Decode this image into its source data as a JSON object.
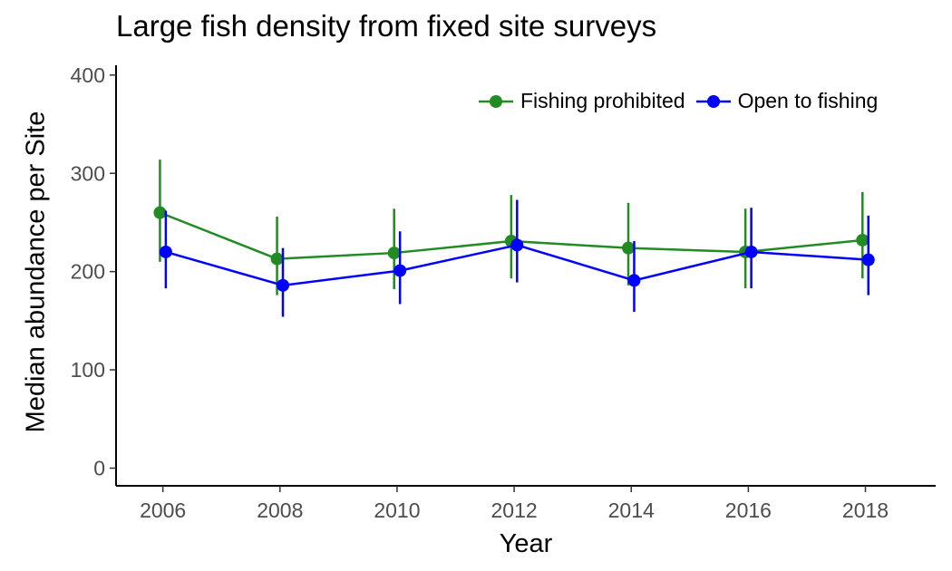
{
  "chart_data": {
    "type": "line",
    "title": "Large fish density from fixed site surveys",
    "xlabel": "Year",
    "ylabel": "Median abundance per Site",
    "x": [
      2006,
      2008,
      2010,
      2012,
      2014,
      2016,
      2018
    ],
    "xlim": [
      2005.2,
      2019.2
    ],
    "ylim": [
      -18,
      410
    ],
    "yticks": [
      0,
      100,
      200,
      300,
      400
    ],
    "grid": false,
    "legend_position": "top-right",
    "series": [
      {
        "name": "Fishing prohibited",
        "color": "#228B22",
        "values": [
          260,
          213,
          219,
          231,
          224,
          220,
          232
        ],
        "lower": [
          210,
          176,
          182,
          193,
          186,
          183,
          193
        ],
        "upper": [
          314,
          256,
          264,
          278,
          270,
          264,
          281
        ]
      },
      {
        "name": "Open to fishing",
        "color": "#0000FF",
        "values": [
          220,
          186,
          201,
          227,
          191,
          220,
          212
        ],
        "lower": [
          183,
          154,
          167,
          189,
          159,
          183,
          176
        ],
        "upper": [
          262,
          224,
          241,
          273,
          231,
          265,
          257
        ]
      }
    ]
  }
}
